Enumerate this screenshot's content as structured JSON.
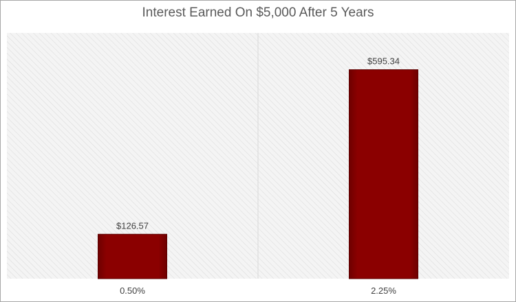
{
  "chart_data": {
    "type": "bar",
    "title": "Interest Earned On $5,000 After 5 Years",
    "categories": [
      "0.50%",
      "2.25%"
    ],
    "values": [
      126.57,
      595.34
    ],
    "data_labels": [
      "$126.57",
      "$595.34"
    ],
    "xlabel": "",
    "ylabel": "",
    "ylim": [
      0,
      700
    ],
    "grid": false,
    "legend": "none",
    "colors": {
      "bar": "#8b0000",
      "bar_edge": "#5c0000",
      "plot_background": "#f2f2f2",
      "hatch": "#dcdcdc",
      "divider": "#d9d9d9"
    }
  }
}
